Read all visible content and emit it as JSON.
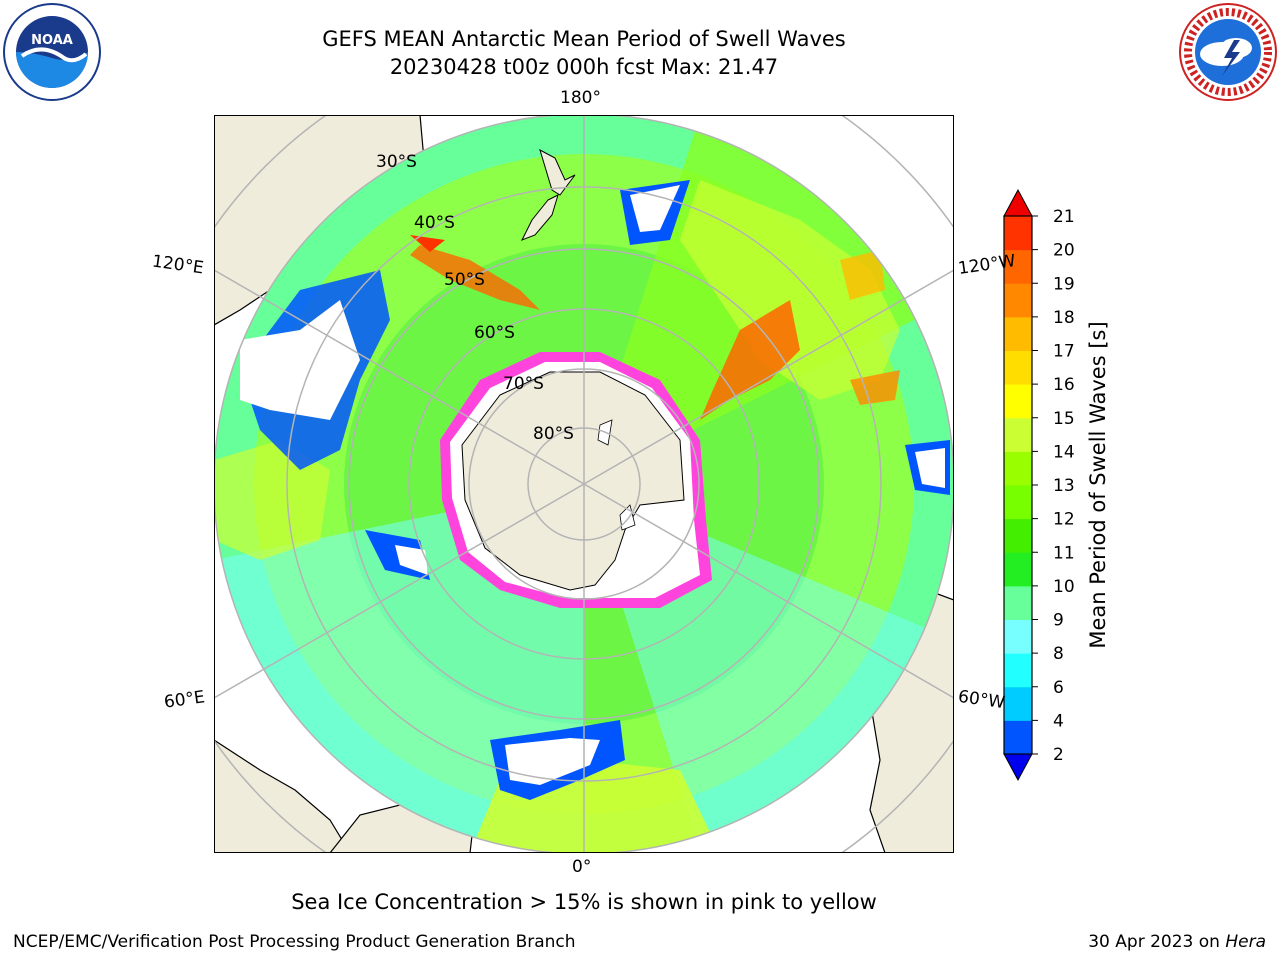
{
  "header": {
    "title_line1": "GEFS MEAN Antarctic Mean Period of Swell Waves",
    "title_line2": "20230428 t00z 000h fcst   Max: 21.47"
  },
  "logos": {
    "left": {
      "icon": "noaa-logo-icon",
      "text": "NOAA"
    },
    "right": {
      "icon": "national-weather-service-logo-icon"
    }
  },
  "map": {
    "projection": "south-polar-stereographic",
    "meridian_labels": {
      "top": "180°",
      "bottom": "0°",
      "upper_left": "120°E",
      "lower_left": "60°E",
      "upper_right": "120°W",
      "lower_right": "60°W"
    },
    "latitude_labels": [
      "30°S",
      "40°S",
      "50°S",
      "60°S",
      "70°S",
      "80°S"
    ],
    "colors": {
      "land": "#efecdc",
      "ocean_nodata": "#ffffff",
      "grid": "#b4b4b4",
      "coast": "#000000",
      "sea_ice": "#ff44dd"
    }
  },
  "colorbar": {
    "label": "Mean Period of Swell Waves [s]",
    "ticks": [
      "2",
      "4",
      "6",
      "8",
      "9",
      "10",
      "11",
      "12",
      "13",
      "14",
      "15",
      "16",
      "17",
      "18",
      "19",
      "20",
      "21"
    ],
    "colors": [
      "#0055ff",
      "#00ccff",
      "#22ffff",
      "#77ffff",
      "#66ff99",
      "#22ee22",
      "#44ee00",
      "#77ff00",
      "#99ff00",
      "#ccff33",
      "#ffff00",
      "#ffdd00",
      "#ffbb00",
      "#ff8800",
      "#ff6600",
      "#ff3300"
    ],
    "under_color": "#0000ee",
    "over_color": "#ee0000"
  },
  "notes": {
    "ice": "Sea Ice Concentration > 15% is shown in pink to yellow"
  },
  "footer": {
    "left": "NCEP/EMC/Verification Post Processing Product Generation Branch",
    "right_prefix": "30 Apr 2023 on",
    "right_machine": "Hera"
  }
}
